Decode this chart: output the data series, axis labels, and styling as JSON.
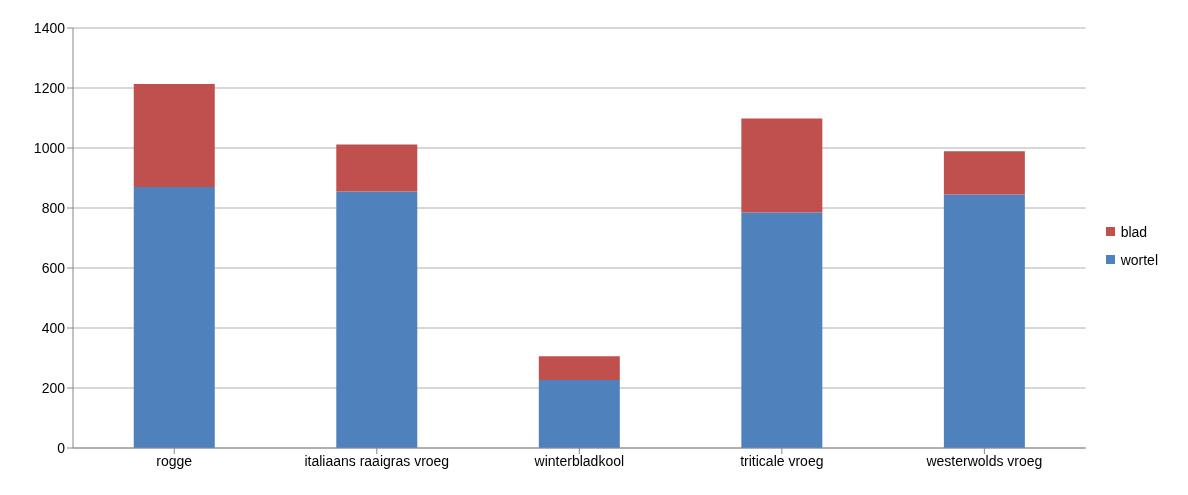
{
  "chart_data": {
    "type": "bar",
    "stacked": true,
    "categories": [
      "rogge",
      "italiaans raaigras vroeg",
      "winterbladkool",
      "triticale vroeg",
      "westerwolds vroeg"
    ],
    "series": [
      {
        "name": "wortel",
        "color": "#4f81bd",
        "values": [
          870,
          855,
          227,
          785,
          845
        ]
      },
      {
        "name": "blad",
        "color": "#c0504d",
        "values": [
          343,
          157,
          79,
          313,
          144
        ]
      }
    ],
    "ylim": [
      0,
      1400
    ],
    "yticks": [
      0,
      200,
      400,
      600,
      800,
      1000,
      1200,
      1400
    ],
    "grid": "y",
    "legend": "right"
  }
}
